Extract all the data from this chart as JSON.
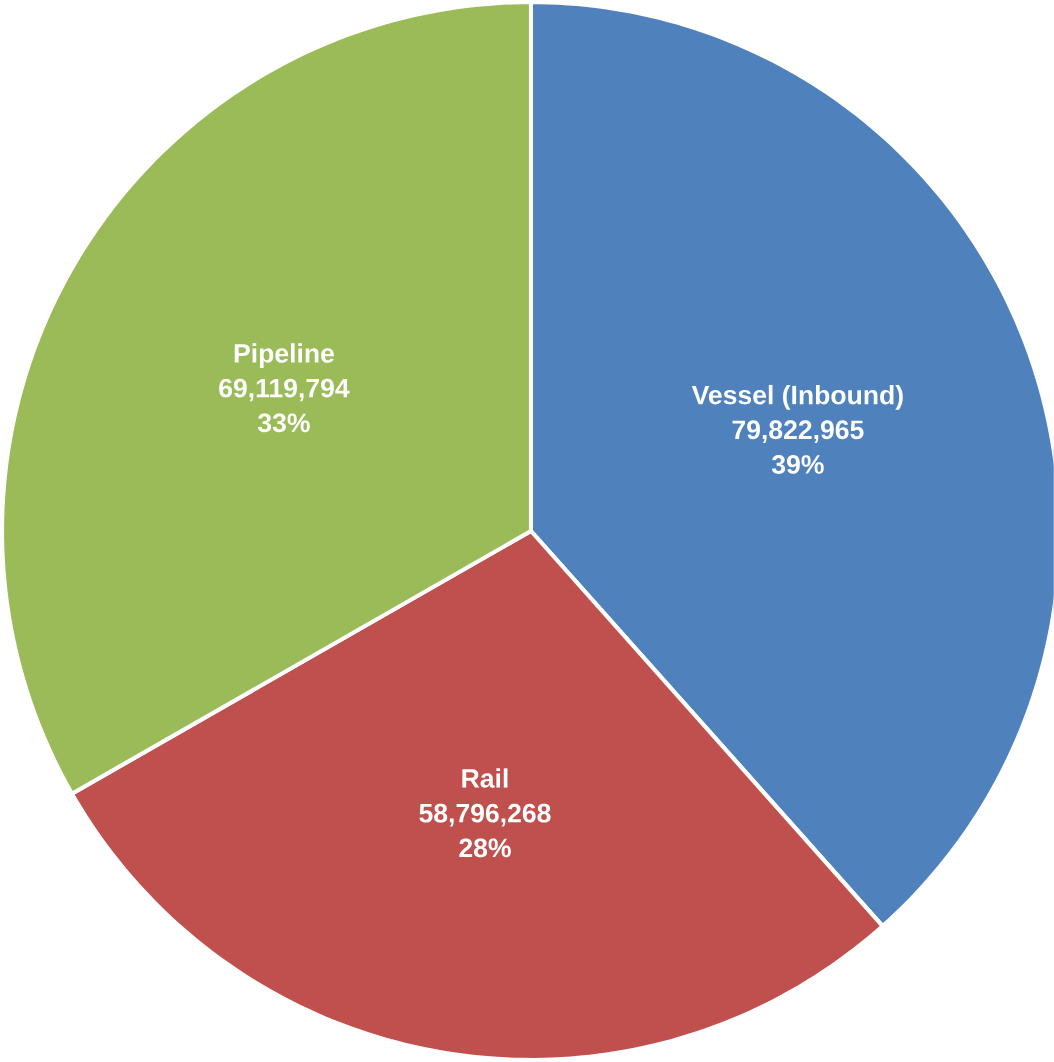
{
  "chart_data": {
    "type": "pie",
    "categories": [
      "Vessel (Inbound)",
      "Rail",
      "Pipeline"
    ],
    "values": [
      79822965,
      58796268,
      69119794
    ],
    "colors": [
      "#4f81bd",
      "#c0504d",
      "#9bbb59"
    ],
    "value_labels": [
      "79,822,965",
      "58,796,268",
      "69,119,794"
    ],
    "annotations": [
      "39%",
      "28%",
      "33%"
    ]
  }
}
